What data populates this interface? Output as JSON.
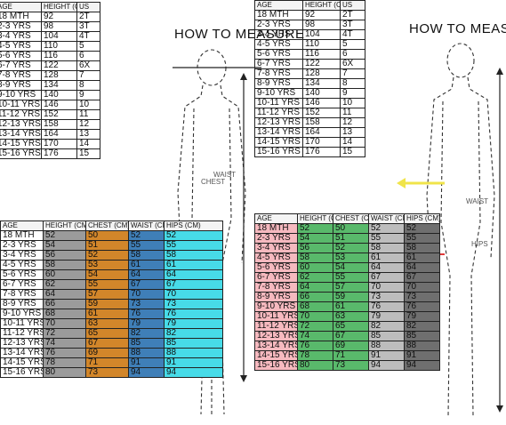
{
  "titles": {
    "left": "HOW TO MEASURE",
    "right": "HOW TO MEASURE"
  },
  "figure_labels": {
    "chest": "CHEST",
    "waist": "WAIST",
    "hips": "HIPS"
  },
  "colors": {
    "gray": "#9b9b9b",
    "orange": "#d2862a",
    "blue": "#3f7fb8",
    "cyan": "#47dbe8",
    "pink": "#f6b9bf",
    "green": "#59b96b",
    "dark_gray": "#6f6f6f",
    "arrow_red": "#e03a3a",
    "arrow_yellow": "#f0e44a"
  },
  "table_top_left": {
    "header": [
      "AGE",
      "HEIGHT (CM)",
      "US"
    ],
    "rows": [
      [
        "18 MTH",
        "92",
        "2T"
      ],
      [
        "2-3 YRS",
        "98",
        "3T"
      ],
      [
        "3-4 YRS",
        "104",
        "4T"
      ],
      [
        "4-5 YRS",
        "110",
        "5"
      ],
      [
        "5-6 YRS",
        "116",
        "6"
      ],
      [
        "6-7 YRS",
        "122",
        "6X"
      ],
      [
        "7-8 YRS",
        "128",
        "7"
      ],
      [
        "8-9 YRS",
        "134",
        "8"
      ],
      [
        "9-10 YRS",
        "140",
        "9"
      ],
      [
        "10-11 YRS",
        "146",
        "10"
      ],
      [
        "11-12 YRS",
        "152",
        "11"
      ],
      [
        "12-13 YRS",
        "158",
        "12"
      ],
      [
        "13-14 YRS",
        "164",
        "13"
      ],
      [
        "14-15 YRS",
        "170",
        "14"
      ],
      [
        "15-16 YRS",
        "176",
        "15"
      ]
    ]
  },
  "table_top_mid": {
    "header": [
      "AGE",
      "HEIGHT (CM)",
      "US"
    ],
    "rows": [
      [
        "18 MTH",
        "92",
        "2T"
      ],
      [
        "2-3 YRS",
        "98",
        "3T"
      ],
      [
        "3-4 YRS",
        "104",
        "4T"
      ],
      [
        "4-5 YRS",
        "110",
        "5"
      ],
      [
        "5-6 YRS",
        "116",
        "6"
      ],
      [
        "6-7 YRS",
        "122",
        "6X"
      ],
      [
        "7-8 YRS",
        "128",
        "7"
      ],
      [
        "8-9 YRS",
        "134",
        "8"
      ],
      [
        "9-10 YRS",
        "140",
        "9"
      ],
      [
        "10-11 YRS",
        "146",
        "10"
      ],
      [
        "11-12 YRS",
        "152",
        "11"
      ],
      [
        "12-13 YRS",
        "158",
        "12"
      ],
      [
        "13-14 YRS",
        "164",
        "13"
      ],
      [
        "14-15 YRS",
        "170",
        "14"
      ],
      [
        "15-16 YRS",
        "176",
        "15"
      ]
    ]
  },
  "table_bottom_left": {
    "header": [
      "AGE",
      "HEIGHT (CM)",
      "CHEST (CM)",
      "WAIST (CM)",
      "HIPS (CM)"
    ],
    "rows": [
      [
        "18 MTH",
        "52",
        "50",
        "52",
        "52"
      ],
      [
        "2-3 YRS",
        "54",
        "51",
        "55",
        "55"
      ],
      [
        "3-4 YRS",
        "56",
        "52",
        "58",
        "58"
      ],
      [
        "4-5 YRS",
        "58",
        "53",
        "61",
        "61"
      ],
      [
        "5-6 YRS",
        "60",
        "54",
        "64",
        "64"
      ],
      [
        "6-7 YRS",
        "62",
        "55",
        "67",
        "67"
      ],
      [
        "7-8 YRS",
        "64",
        "57",
        "70",
        "70"
      ],
      [
        "8-9 YRS",
        "66",
        "59",
        "73",
        "73"
      ],
      [
        "9-10 YRS",
        "68",
        "61",
        "76",
        "76"
      ],
      [
        "10-11 YRS",
        "70",
        "63",
        "79",
        "79"
      ],
      [
        "11-12 YRS",
        "72",
        "65",
        "82",
        "82"
      ],
      [
        "12-13 YRS",
        "74",
        "67",
        "85",
        "85"
      ],
      [
        "13-14 YRS",
        "76",
        "69",
        "88",
        "88"
      ],
      [
        "14-15 YRS",
        "78",
        "71",
        "91",
        "91"
      ],
      [
        "15-16 YRS",
        "80",
        "73",
        "94",
        "94"
      ]
    ]
  },
  "table_bottom_right": {
    "header": [
      "AGE",
      "HEIGHT (CM)",
      "CHEST (CM)",
      "WAIST (CM)",
      "HIPS (CM)"
    ],
    "rows": [
      [
        "18 MTH",
        "52",
        "50",
        "52",
        "52"
      ],
      [
        "2-3 YRS",
        "54",
        "51",
        "55",
        "55"
      ],
      [
        "3-4 YRS",
        "56",
        "52",
        "58",
        "58"
      ],
      [
        "4-5 YRS",
        "58",
        "53",
        "61",
        "61"
      ],
      [
        "5-6 YRS",
        "60",
        "54",
        "64",
        "64"
      ],
      [
        "6-7 YRS",
        "62",
        "55",
        "67",
        "67"
      ],
      [
        "7-8 YRS",
        "64",
        "57",
        "70",
        "70"
      ],
      [
        "8-9 YRS",
        "66",
        "59",
        "73",
        "73"
      ],
      [
        "9-10 YRS",
        "68",
        "61",
        "76",
        "76"
      ],
      [
        "10-11 YRS",
        "70",
        "63",
        "79",
        "79"
      ],
      [
        "11-12 YRS",
        "72",
        "65",
        "82",
        "82"
      ],
      [
        "12-13 YRS",
        "74",
        "67",
        "85",
        "85"
      ],
      [
        "13-14 YRS",
        "76",
        "69",
        "88",
        "88"
      ],
      [
        "14-15 YRS",
        "78",
        "71",
        "91",
        "91"
      ],
      [
        "15-16 YRS",
        "80",
        "73",
        "94",
        "94"
      ]
    ]
  }
}
